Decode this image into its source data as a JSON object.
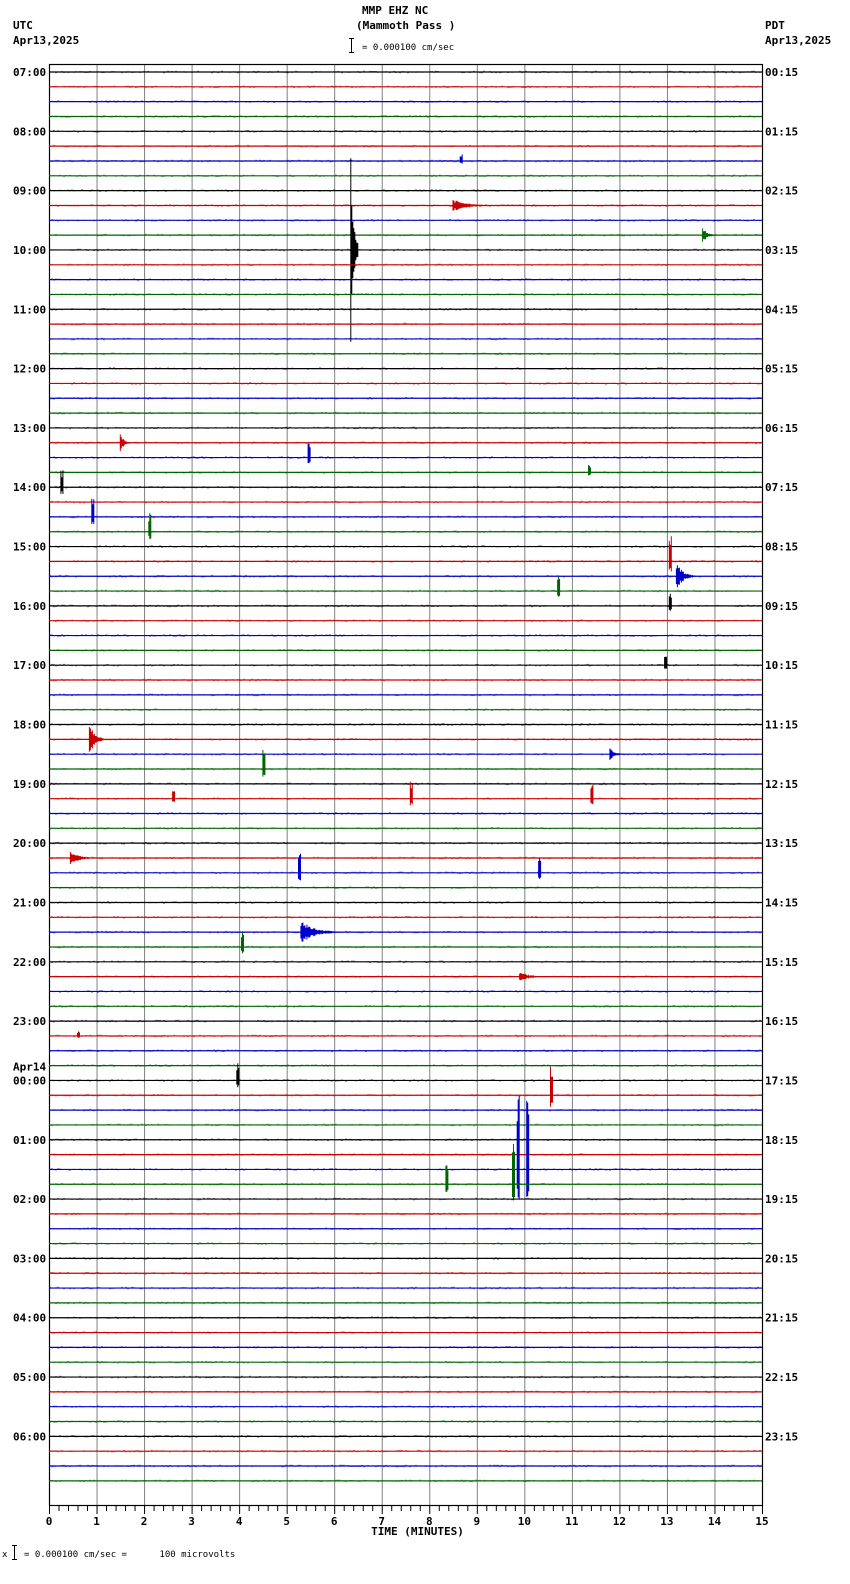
{
  "header": {
    "station": "MMP EHZ NC",
    "location": "(Mammoth Pass )",
    "left_tz": "UTC",
    "left_date": "Apr13,2025",
    "right_tz": "PDT",
    "right_date": "Apr13,2025",
    "scale_text": "= 0.000100 cm/sec"
  },
  "footer": {
    "scale_prefix": "x",
    "scale_text": "= 0.000100 cm/sec =      100 microvolts"
  },
  "chart_data": {
    "type": "line",
    "title": "MMP EHZ NC (Mammoth Pass )",
    "xlabel": "TIME (MINUTES)",
    "ylabel": "",
    "xlim": [
      0,
      15
    ],
    "x_ticks": [
      "0",
      "1",
      "2",
      "3",
      "4",
      "5",
      "6",
      "7",
      "8",
      "9",
      "10",
      "11",
      "12",
      "13",
      "14",
      "15"
    ],
    "minor_ticks_per_minute": 5,
    "grid": true,
    "traces_per_hour": 4,
    "trace_colors": [
      "#000000",
      "#cc0000",
      "#0000cc",
      "#006600"
    ],
    "left_labels": [
      {
        "row": 0,
        "text": "07:00"
      },
      {
        "row": 4,
        "text": "08:00"
      },
      {
        "row": 8,
        "text": "09:00"
      },
      {
        "row": 12,
        "text": "10:00"
      },
      {
        "row": 16,
        "text": "11:00"
      },
      {
        "row": 20,
        "text": "12:00"
      },
      {
        "row": 24,
        "text": "13:00"
      },
      {
        "row": 28,
        "text": "14:00"
      },
      {
        "row": 32,
        "text": "15:00"
      },
      {
        "row": 36,
        "text": "16:00"
      },
      {
        "row": 40,
        "text": "17:00"
      },
      {
        "row": 44,
        "text": "18:00"
      },
      {
        "row": 48,
        "text": "19:00"
      },
      {
        "row": 52,
        "text": "20:00"
      },
      {
        "row": 56,
        "text": "21:00"
      },
      {
        "row": 60,
        "text": "22:00"
      },
      {
        "row": 64,
        "text": "23:00"
      },
      {
        "row": 68,
        "text": "00:00",
        "date": "Apr14"
      },
      {
        "row": 72,
        "text": "01:00"
      },
      {
        "row": 76,
        "text": "02:00"
      },
      {
        "row": 80,
        "text": "03:00"
      },
      {
        "row": 84,
        "text": "04:00"
      },
      {
        "row": 88,
        "text": "05:00"
      },
      {
        "row": 92,
        "text": "06:00"
      }
    ],
    "right_labels": [
      "00:15",
      "01:15",
      "02:15",
      "03:15",
      "04:15",
      "05:15",
      "06:15",
      "07:15",
      "08:15",
      "09:15",
      "10:15",
      "11:15",
      "12:15",
      "13:15",
      "14:15",
      "15:15",
      "16:15",
      "17:15",
      "18:15",
      "19:15",
      "20:15",
      "21:15",
      "22:15",
      "23:15"
    ],
    "events": [
      {
        "row": 6,
        "minute": 8.65,
        "amp": 8,
        "dur": 0.05
      },
      {
        "row": 9,
        "minute": 8.5,
        "amp": 6,
        "dur": 0.9
      },
      {
        "row": 11,
        "minute": 13.75,
        "amp": 9,
        "dur": 0.25
      },
      {
        "row": 12,
        "minute": 6.35,
        "amp": 95,
        "dur": 0.15
      },
      {
        "row": 25,
        "minute": 1.5,
        "amp": 10,
        "dur": 0.2
      },
      {
        "row": 26,
        "minute": 5.45,
        "amp": 18,
        "dur": 0.05
      },
      {
        "row": 27,
        "minute": 11.35,
        "amp": 8,
        "dur": 0.05
      },
      {
        "row": 28,
        "minute": 0.25,
        "amp": 18,
        "dur": 0.05
      },
      {
        "row": 30,
        "minute": 0.9,
        "amp": 25,
        "dur": 0.05
      },
      {
        "row": 31,
        "minute": 2.1,
        "amp": 20,
        "dur": 0.05
      },
      {
        "row": 33,
        "minute": 13.05,
        "amp": 28,
        "dur": 0.05
      },
      {
        "row": 34,
        "minute": 13.2,
        "amp": 14,
        "dur": 0.4
      },
      {
        "row": 35,
        "minute": 10.7,
        "amp": 16,
        "dur": 0.05
      },
      {
        "row": 36,
        "minute": 13.05,
        "amp": 12,
        "dur": 0.05
      },
      {
        "row": 40,
        "minute": 12.95,
        "amp": 12,
        "dur": 0.05
      },
      {
        "row": 45,
        "minute": 0.85,
        "amp": 18,
        "dur": 0.3
      },
      {
        "row": 46,
        "minute": 11.8,
        "amp": 6,
        "dur": 0.3
      },
      {
        "row": 47,
        "minute": 4.5,
        "amp": 20,
        "dur": 0.05
      },
      {
        "row": 49,
        "minute": 2.6,
        "amp": 14,
        "dur": 0.05
      },
      {
        "row": 49,
        "minute": 7.6,
        "amp": 18,
        "dur": 0.05
      },
      {
        "row": 49,
        "minute": 11.4,
        "amp": 14,
        "dur": 0.05
      },
      {
        "row": 53,
        "minute": 0.45,
        "amp": 7,
        "dur": 0.5
      },
      {
        "row": 54,
        "minute": 5.25,
        "amp": 22,
        "dur": 0.05
      },
      {
        "row": 54,
        "minute": 10.3,
        "amp": 18,
        "dur": 0.05
      },
      {
        "row": 58,
        "minute": 5.3,
        "amp": 12,
        "dur": 0.8
      },
      {
        "row": 59,
        "minute": 4.05,
        "amp": 18,
        "dur": 0.05
      },
      {
        "row": 61,
        "minute": 9.9,
        "amp": 5,
        "dur": 0.6
      },
      {
        "row": 65,
        "minute": 0.6,
        "amp": 6,
        "dur": 0.05
      },
      {
        "row": 68,
        "minute": 3.95,
        "amp": 20,
        "dur": 0.05
      },
      {
        "row": 69,
        "minute": 10.55,
        "amp": 30,
        "dur": 0.05
      },
      {
        "row": 74,
        "minute": 9.85,
        "amp": 75,
        "dur": 0.05
      },
      {
        "row": 74,
        "minute": 10.05,
        "amp": 95,
        "dur": 0.05
      },
      {
        "row": 75,
        "minute": 8.35,
        "amp": 20,
        "dur": 0.05
      },
      {
        "row": 75,
        "minute": 9.75,
        "amp": 55,
        "dur": 0.05
      }
    ]
  }
}
